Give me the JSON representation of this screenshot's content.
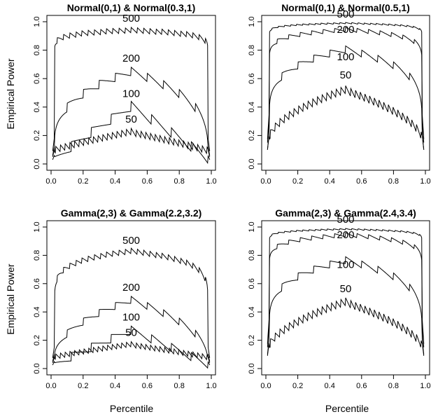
{
  "figure": {
    "xlabel": "Percentile",
    "ylabel": "Empirical Power"
  },
  "chart_data": [
    {
      "type": "line",
      "title": "Normal(0,1) & Normal(0.3,1)",
      "xlim": [
        0,
        1
      ],
      "ylim": [
        0,
        1
      ],
      "xticks": [
        "0.0",
        "0.2",
        "0.4",
        "0.6",
        "0.8",
        "1.0"
      ],
      "yticks": [
        "0.0",
        "0.2",
        "0.4",
        "0.6",
        "0.8",
        "1.0"
      ],
      "series": [
        {
          "name": "500",
          "label_at": [
            0.5,
            1.0
          ],
          "peak": 0.96,
          "edge": 0.18,
          "rise": 0.03,
          "amp": 0.04,
          "saw": 26
        },
        {
          "name": "200",
          "label_at": [
            0.5,
            0.72
          ],
          "peak": 0.68,
          "edge": 0.1,
          "rise": 0.32,
          "amp": 0.06,
          "saw": 10
        },
        {
          "name": "100",
          "label_at": [
            0.5,
            0.47
          ],
          "peak": 0.44,
          "edge": 0.06,
          "rise": 0.9,
          "amp": 0.07,
          "saw": 8
        },
        {
          "name": "50",
          "label_at": [
            0.5,
            0.29
          ],
          "peak": 0.25,
          "edge": 0.12,
          "rise": 0.9,
          "amp": 0.05,
          "saw": 34
        }
      ]
    },
    {
      "type": "line",
      "title": "Normal(0,1) & Normal(0.5,1)",
      "xlim": [
        0,
        1
      ],
      "ylim": [
        0,
        1
      ],
      "xticks": [
        "0.0",
        "0.2",
        "0.4",
        "0.6",
        "0.8",
        "1.0"
      ],
      "yticks": [
        "0.0",
        "0.2",
        "0.4",
        "0.6",
        "0.8",
        "1.0"
      ],
      "series": [
        {
          "name": "500",
          "label_at": [
            0.5,
            1.03
          ],
          "peak": 0.995,
          "edge": 0.35,
          "rise": 0.02,
          "amp": 0.01,
          "saw": 26
        },
        {
          "name": "200",
          "label_at": [
            0.5,
            0.92
          ],
          "peak": 0.96,
          "edge": 0.3,
          "rise": 0.06,
          "amp": 0.03,
          "saw": 14
        },
        {
          "name": "100",
          "label_at": [
            0.5,
            0.73
          ],
          "peak": 0.83,
          "edge": 0.2,
          "rise": 0.2,
          "amp": 0.05,
          "saw": 10
        },
        {
          "name": "50",
          "label_at": [
            0.5,
            0.6
          ],
          "peak": 0.55,
          "edge": 0.2,
          "rise": 0.55,
          "amp": 0.06,
          "saw": 34
        }
      ]
    },
    {
      "type": "line",
      "title": "Gamma(2,3) & Gamma(2.2,3.2)",
      "xlim": [
        0,
        1
      ],
      "ylim": [
        0,
        1
      ],
      "xticks": [
        "0.0",
        "0.2",
        "0.4",
        "0.6",
        "0.8",
        "1.0"
      ],
      "yticks": [
        "0.0",
        "0.2",
        "0.4",
        "0.6",
        "0.8",
        "1.0"
      ],
      "series": [
        {
          "name": "500",
          "label_at": [
            0.5,
            0.88
          ],
          "peak": 0.85,
          "edge": 0.15,
          "rise": 0.1,
          "amp": 0.04,
          "saw": 26
        },
        {
          "name": "200",
          "label_at": [
            0.5,
            0.55
          ],
          "peak": 0.51,
          "edge": 0.08,
          "rise": 0.45,
          "amp": 0.05,
          "saw": 10
        },
        {
          "name": "100",
          "label_at": [
            0.5,
            0.34
          ],
          "peak": 0.3,
          "edge": 0.05,
          "rise": 0.9,
          "amp": 0.06,
          "saw": 8
        },
        {
          "name": "50",
          "label_at": [
            0.5,
            0.23
          ],
          "peak": 0.19,
          "edge": 0.1,
          "rise": 0.9,
          "amp": 0.04,
          "saw": 34
        }
      ]
    },
    {
      "type": "line",
      "title": "Gamma(2,3) & Gamma(2.4,3.4)",
      "xlim": [
        0,
        1
      ],
      "ylim": [
        0,
        1
      ],
      "xticks": [
        "0.0",
        "0.2",
        "0.4",
        "0.6",
        "0.8",
        "1.0"
      ],
      "yticks": [
        "0.0",
        "0.2",
        "0.4",
        "0.6",
        "0.8",
        "1.0"
      ],
      "series": [
        {
          "name": "500",
          "label_at": [
            0.5,
            1.03
          ],
          "peak": 0.99,
          "edge": 0.35,
          "rise": 0.02,
          "amp": 0.01,
          "saw": 26
        },
        {
          "name": "200",
          "label_at": [
            0.5,
            0.92
          ],
          "peak": 0.96,
          "edge": 0.3,
          "rise": 0.06,
          "amp": 0.03,
          "saw": 14
        },
        {
          "name": "100",
          "label_at": [
            0.5,
            0.71
          ],
          "peak": 0.79,
          "edge": 0.2,
          "rise": 0.22,
          "amp": 0.05,
          "saw": 10
        },
        {
          "name": "50",
          "label_at": [
            0.5,
            0.54
          ],
          "peak": 0.5,
          "edge": 0.18,
          "rise": 0.6,
          "amp": 0.06,
          "saw": 34
        }
      ]
    }
  ]
}
